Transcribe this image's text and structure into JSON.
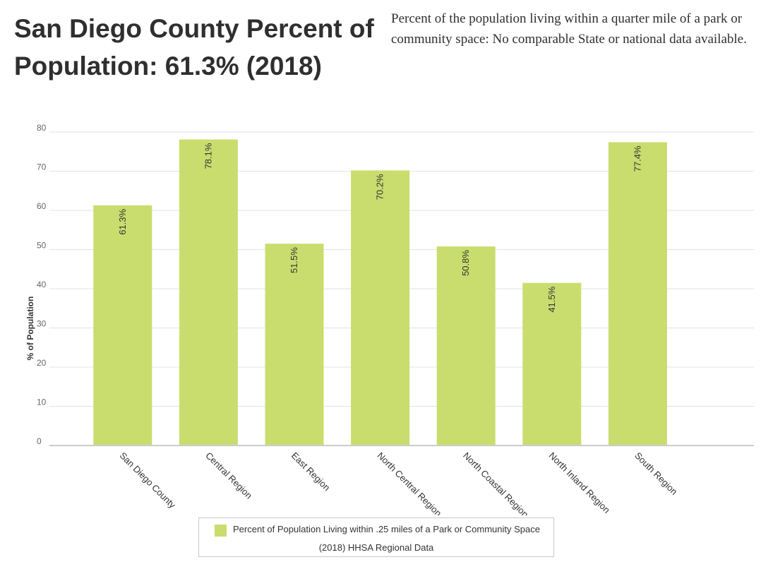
{
  "header": {
    "title": "San Diego County Percent of Population: 61.3% (2018)",
    "description": "Percent of the population living within a quarter mile of a park or community space: No comparable State or national data available."
  },
  "chart_data": {
    "type": "bar",
    "categories": [
      "San Diego County",
      "Central Region",
      "East Region",
      "North Central Region",
      "North Coastal Region",
      "North Inland Region",
      "South Region"
    ],
    "values": [
      61.3,
      78.1,
      51.5,
      70.2,
      50.8,
      41.5,
      77.4
    ],
    "value_labels": [
      "61.3%",
      "78.1%",
      "51.5%",
      "70.2%",
      "50.8%",
      "41.5%",
      "77.4%"
    ],
    "ylabel": "% of Population",
    "xlabel": "",
    "ylim": [
      0,
      80
    ],
    "yticks": [
      0,
      10,
      20,
      30,
      40,
      50,
      60,
      70,
      80
    ],
    "grid": true,
    "bar_color": "#c9dd6e",
    "series_name": "Percent of Population Living within .25 miles of a Park or Community Space",
    "legend_subtitle": "(2018) HHSA Regional Data",
    "legend_position": "bottom"
  }
}
